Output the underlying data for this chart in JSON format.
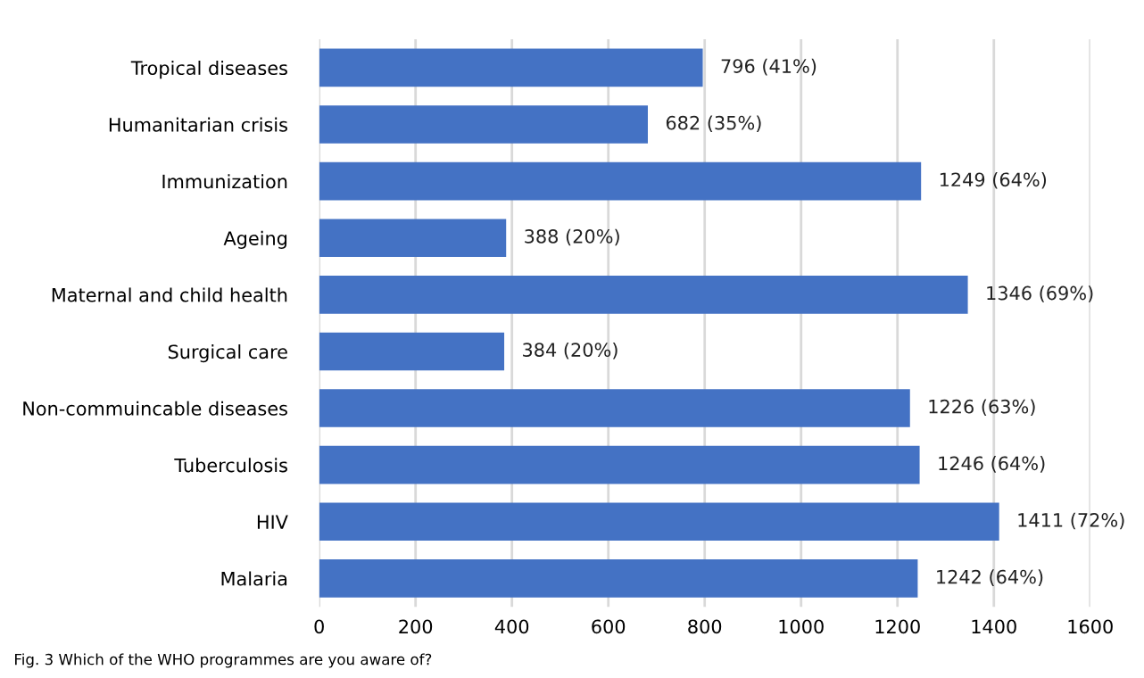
{
  "chart_data": {
    "type": "bar",
    "orientation": "horizontal",
    "categories": [
      "Tropical diseases",
      "Humanitarian crisis",
      "Immunization",
      "Ageing",
      "Maternal and child health",
      "Surgical care",
      "Non-commuincable diseases",
      "Tuberculosis",
      "HIV",
      "Malaria"
    ],
    "values": [
      796,
      682,
      1249,
      388,
      1346,
      384,
      1226,
      1246,
      1411,
      1242
    ],
    "value_labels": [
      "796 (41%)",
      "682 (35%)",
      "1249 (64%)",
      "388 (20%)",
      "1346 (69%)",
      "384 (20%)",
      "1226 (63%)",
      "1246 (64%)",
      "1411 (72%)",
      "1242 (64%)"
    ],
    "color": "#4472c4",
    "xlim": [
      0,
      1600
    ],
    "xticks": [
      0,
      200,
      400,
      600,
      800,
      1000,
      1200,
      1400,
      1600
    ],
    "grid": "x",
    "annotations": [
      "Fig. 3 Which of the WHO programmes are you aware of?"
    ]
  }
}
